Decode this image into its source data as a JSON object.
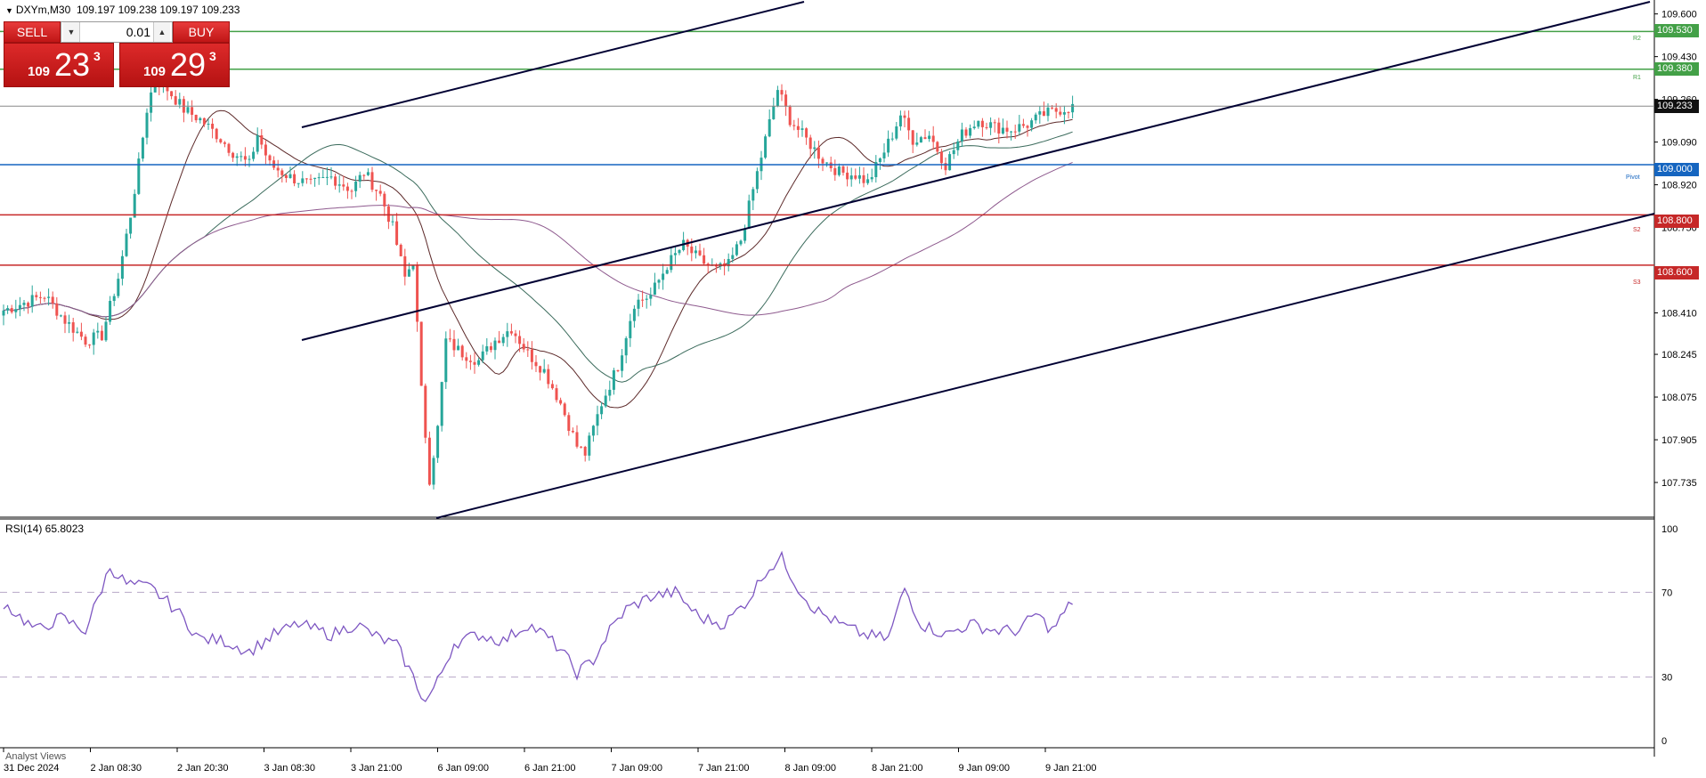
{
  "header": {
    "symbol_timeframe": "DXYm,M30",
    "ohlc": "109.197 109.238 109.197 109.233"
  },
  "trade_panel": {
    "sell_label": "SELL",
    "buy_label": "BUY",
    "lot_value": "0.01",
    "bid": {
      "prefix": "109",
      "big": "23",
      "sup": "3"
    },
    "ask": {
      "prefix": "109",
      "big": "29",
      "sup": "3"
    }
  },
  "colors": {
    "bull": "#26a69a",
    "bear": "#ef5350",
    "trendline": "#000033",
    "pivot": "#1565c0",
    "support": "#c62828",
    "resistance": "#43a047",
    "rsi": "#7e57c2",
    "ma_fast": "#5d2a2a",
    "ma_mid": "#3b6b5c",
    "ma_slow": "#8e5a8e",
    "current_price": "#111111"
  },
  "levels": {
    "r2": {
      "value": "109.530",
      "tag": "R2"
    },
    "r1": {
      "value": "109.380",
      "tag": "R1"
    },
    "current": {
      "value": "109.233"
    },
    "pivot": {
      "value": "109.000",
      "tag": "Pivot"
    },
    "s2": {
      "value": "108.800",
      "tag": "S2"
    },
    "s3": {
      "value": "108.600",
      "tag": "S3"
    }
  },
  "rsi": {
    "title": "RSI(14) 65.8023",
    "levels": [
      70,
      30
    ],
    "axis_labels": [
      "100",
      "70",
      "30",
      "0"
    ]
  },
  "bottom_tab": "Analyst Views",
  "chart_data": {
    "type": "candlestick",
    "symbol": "DXYm",
    "timeframe": "M30",
    "y_range": [
      107.65,
      109.62
    ],
    "y_ticks": [
      "109.600",
      "109.430",
      "109.260",
      "109.090",
      "108.920",
      "108.750",
      "108.580",
      "108.410",
      "108.245",
      "108.075",
      "107.905",
      "107.735"
    ],
    "x_tick_labels": [
      "31 Dec 2024",
      "2 Jan 08:30",
      "2 Jan 20:30",
      "3 Jan 08:30",
      "3 Jan 21:00",
      "6 Jan 09:00",
      "6 Jan 21:00",
      "7 Jan 09:00",
      "7 Jan 21:00",
      "8 Jan 09:00",
      "8 Jan 21:00",
      "9 Jan 09:00",
      "9 Jan 21:00"
    ],
    "close_path": [
      [
        0,
        108.42
      ],
      [
        5,
        108.45
      ],
      [
        10,
        108.48
      ],
      [
        15,
        108.38
      ],
      [
        20,
        108.3
      ],
      [
        24,
        108.32
      ],
      [
        28,
        108.55
      ],
      [
        31,
        108.8
      ],
      [
        33,
        109.0
      ],
      [
        35,
        109.22
      ],
      [
        37,
        109.35
      ],
      [
        40,
        109.3
      ],
      [
        44,
        109.22
      ],
      [
        48,
        109.18
      ],
      [
        52,
        109.12
      ],
      [
        56,
        109.05
      ],
      [
        60,
        109.0
      ],
      [
        62,
        109.12
      ],
      [
        65,
        109.0
      ],
      [
        70,
        108.95
      ],
      [
        75,
        108.92
      ],
      [
        80,
        108.95
      ],
      [
        85,
        108.9
      ],
      [
        88,
        108.97
      ],
      [
        92,
        108.88
      ],
      [
        95,
        108.75
      ],
      [
        98,
        108.55
      ],
      [
        100,
        108.62
      ],
      [
        102,
        108.1
      ],
      [
        104,
        107.75
      ],
      [
        106,
        107.95
      ],
      [
        108,
        108.3
      ],
      [
        112,
        108.25
      ],
      [
        116,
        108.22
      ],
      [
        120,
        108.3
      ],
      [
        124,
        108.35
      ],
      [
        128,
        108.25
      ],
      [
        132,
        108.18
      ],
      [
        136,
        108.05
      ],
      [
        140,
        107.88
      ],
      [
        142,
        107.85
      ],
      [
        146,
        108.05
      ],
      [
        150,
        108.2
      ],
      [
        154,
        108.45
      ],
      [
        158,
        108.48
      ],
      [
        162,
        108.6
      ],
      [
        166,
        108.68
      ],
      [
        170,
        108.62
      ],
      [
        174,
        108.58
      ],
      [
        177,
        108.6
      ],
      [
        180,
        108.7
      ],
      [
        183,
        108.9
      ],
      [
        186,
        109.1
      ],
      [
        189,
        109.3
      ],
      [
        192,
        109.18
      ],
      [
        196,
        109.1
      ],
      [
        200,
        109.02
      ],
      [
        204,
        108.97
      ],
      [
        208,
        108.96
      ],
      [
        211,
        108.93
      ],
      [
        214,
        109.02
      ],
      [
        217,
        109.12
      ],
      [
        219,
        109.2
      ],
      [
        222,
        109.1
      ],
      [
        226,
        109.12
      ],
      [
        230,
        109.0
      ],
      [
        234,
        109.12
      ],
      [
        238,
        109.18
      ],
      [
        242,
        109.15
      ],
      [
        246,
        109.14
      ],
      [
        250,
        109.16
      ],
      [
        254,
        109.2
      ],
      [
        258,
        109.22
      ],
      [
        261,
        109.23
      ]
    ],
    "rsi_path": [
      [
        0,
        65
      ],
      [
        8,
        52
      ],
      [
        14,
        58
      ],
      [
        20,
        52
      ],
      [
        26,
        82
      ],
      [
        30,
        74
      ],
      [
        36,
        72
      ],
      [
        42,
        62
      ],
      [
        48,
        48
      ],
      [
        54,
        47
      ],
      [
        60,
        42
      ],
      [
        66,
        50
      ],
      [
        72,
        55
      ],
      [
        80,
        50
      ],
      [
        86,
        55
      ],
      [
        92,
        48
      ],
      [
        96,
        45
      ],
      [
        100,
        30
      ],
      [
        103,
        18
      ],
      [
        106,
        28
      ],
      [
        110,
        46
      ],
      [
        116,
        50
      ],
      [
        122,
        47
      ],
      [
        128,
        55
      ],
      [
        132,
        50
      ],
      [
        136,
        43
      ],
      [
        140,
        32
      ],
      [
        144,
        38
      ],
      [
        148,
        52
      ],
      [
        152,
        62
      ],
      [
        158,
        68
      ],
      [
        164,
        70
      ],
      [
        170,
        58
      ],
      [
        176,
        55
      ],
      [
        182,
        67
      ],
      [
        186,
        80
      ],
      [
        190,
        86
      ],
      [
        194,
        72
      ],
      [
        198,
        62
      ],
      [
        204,
        55
      ],
      [
        210,
        50
      ],
      [
        216,
        48
      ],
      [
        220,
        72
      ],
      [
        224,
        55
      ],
      [
        230,
        50
      ],
      [
        236,
        55
      ],
      [
        242,
        52
      ],
      [
        248,
        52
      ],
      [
        252,
        60
      ],
      [
        256,
        52
      ],
      [
        261,
        65.8
      ]
    ]
  }
}
